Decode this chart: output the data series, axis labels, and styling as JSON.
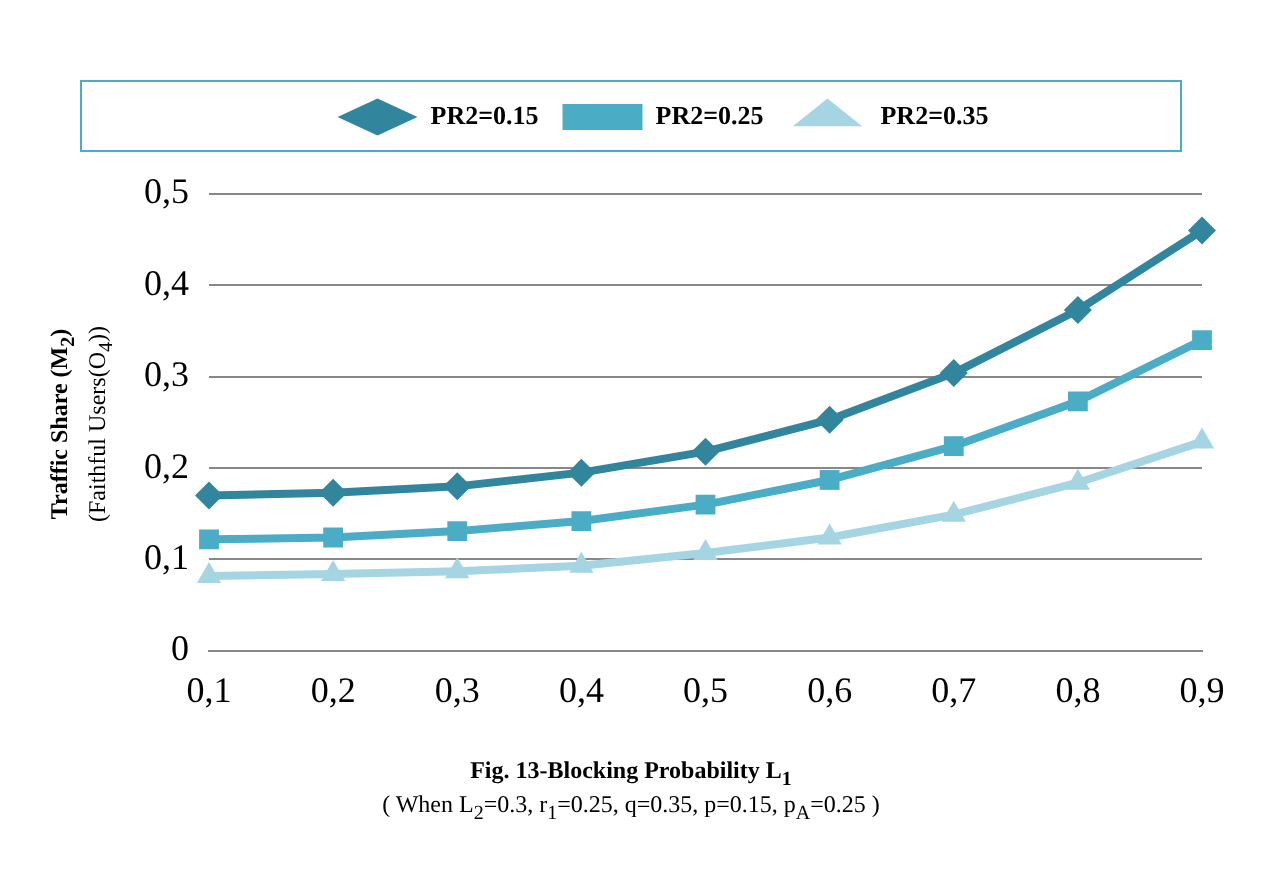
{
  "chart_data": {
    "type": "line",
    "xlabel": "Fig. 13-Blocking Probability L$_{1}$",
    "ylabel": "Traffic Share (M$_{2}$)\n(Faithful Users(O$_{4}$))",
    "annotations": [
      "( When L$_{2}$=0.3, r$_{1}$=0.25,  q=0.35, p=0.15, p$_{A}$=0.25 )"
    ],
    "categories": [
      "0,1",
      "0,2",
      "0,3",
      "0,4",
      "0,5",
      "0,6",
      "0,7",
      "0,8",
      "0,9"
    ],
    "ylim": [
      0,
      0.5
    ],
    "yticks": [
      {
        "value": 0,
        "label": "0"
      },
      {
        "value": 0.1,
        "label": "0,1"
      },
      {
        "value": 0.2,
        "label": "0,2"
      },
      {
        "value": 0.3,
        "label": "0,3"
      },
      {
        "value": 0.4,
        "label": "0,4"
      },
      {
        "value": 0.5,
        "label": "0,5"
      }
    ],
    "grid": "y",
    "legend": "top",
    "line_style": "solid",
    "series": [
      {
        "name": "PR2=0.15",
        "color": "#31859c",
        "marker": "diamond",
        "values": [
          0.17,
          0.173,
          0.18,
          0.195,
          0.218,
          0.253,
          0.304,
          0.373,
          0.46
        ]
      },
      {
        "name": "PR2=0.25",
        "color": "#4bacc6",
        "marker": "square",
        "values": [
          0.122,
          0.124,
          0.131,
          0.142,
          0.16,
          0.187,
          0.224,
          0.273,
          0.34
        ]
      },
      {
        "name": "PR2=0.35",
        "color": "#a5d5e2",
        "marker": "triangle",
        "values": [
          0.082,
          0.084,
          0.087,
          0.093,
          0.107,
          0.124,
          0.149,
          0.184,
          0.229
        ]
      }
    ]
  }
}
